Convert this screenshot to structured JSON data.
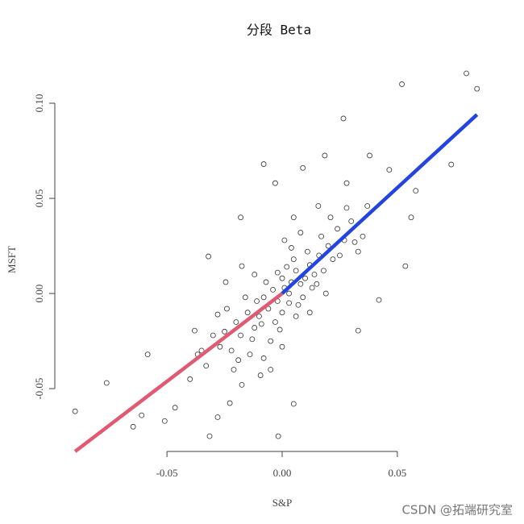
{
  "chart_data": {
    "type": "scatter",
    "title": "分段 Beta",
    "x_label": "S&P",
    "y_label": "MSFT",
    "watermark": "CSDN @拓端研究室",
    "xlim": [
      -0.098,
      0.091
    ],
    "ylim": [
      -0.083,
      0.1195
    ],
    "xticks": [
      -0.05,
      {
        "value": 0,
        "label": "0.00"
      },
      0.05
    ],
    "yticks": [
      -0.05,
      {
        "value": 0,
        "label": "0.00"
      },
      0.05,
      {
        "value": 0.1,
        "label": "0.10"
      }
    ],
    "series": [
      {
        "color": "#333333",
        "kind": "points",
        "x": [
          -0.0899,
          -0.0762,
          -0.0584,
          -0.0647,
          -0.061,
          -0.051,
          -0.0465,
          -0.0315,
          -0.0017,
          -0.028,
          0.005,
          -0.032,
          -0.018,
          -0.008,
          -0.003,
          0.009,
          0.0266,
          0.052,
          0.08,
          0.0846,
          0.0734,
          0.058,
          0.056,
          0.0535,
          0.0465,
          0.038,
          0.0185,
          0.033,
          0.042,
          0.0315,
          0.037,
          -0.04,
          -0.0367,
          -0.0227,
          -0.0175,
          -0.0094,
          -0.028,
          -0.0245,
          -0.038,
          -0.0175,
          0.028,
          0.0157,
          -0.002,
          0.001,
          0.004,
          -0.006,
          0.008,
          -0.01,
          0.012,
          -0.004,
          0.003,
          0.006,
          -0.008,
          0.01,
          -0.012,
          0.014,
          0.0,
          0.0,
          -0.015,
          0.016,
          -0.003,
          0.005,
          -0.018,
          0.018,
          -0.007,
          0.007,
          0.002,
          -0.001,
          0.011,
          -0.011,
          0.02,
          -0.02,
          0.009,
          -0.009,
          0.013,
          -0.013,
          0.004,
          -0.005,
          0.022,
          -0.022,
          0.017,
          -0.016,
          0.025,
          -0.025,
          0.003,
          -0.002,
          0.006,
          0.015,
          -0.014,
          0.024,
          -0.024,
          0.001,
          0.0,
          0.019,
          -0.019,
          0.027,
          -0.027,
          0.008,
          -0.008,
          0.03,
          -0.03,
          0.012,
          -0.012,
          0.021,
          -0.021,
          0.005,
          -0.005,
          0.033,
          -0.033,
          0.028,
          0.035,
          -0.035
        ],
        "values": [
          -0.0619,
          -0.047,
          -0.032,
          -0.07,
          -0.064,
          -0.067,
          -0.06,
          -0.075,
          -0.075,
          -0.065,
          -0.058,
          0.0195,
          0.04,
          0.068,
          0.058,
          0.066,
          0.092,
          0.11,
          0.1157,
          0.1076,
          0.0678,
          0.054,
          0.04,
          0.0144,
          0.065,
          0.0725,
          0.0725,
          -0.0195,
          -0.0034,
          0.027,
          0.046,
          -0.045,
          -0.032,
          -0.0576,
          -0.048,
          -0.043,
          -0.011,
          0.006,
          -0.0195,
          0.0144,
          0.058,
          0.046,
          -0.004,
          0.003,
          0.006,
          -0.008,
          0.005,
          -0.012,
          0.015,
          0.002,
          -0.005,
          0.012,
          -0.002,
          0.008,
          -0.018,
          0.01,
          0.008,
          -0.01,
          -0.01,
          0.02,
          -0.015,
          0.018,
          -0.022,
          0.012,
          0.006,
          -0.006,
          0.014,
          -0.019,
          0.022,
          -0.004,
          0.025,
          -0.015,
          -0.002,
          -0.016,
          0.003,
          -0.024,
          0.024,
          -0.025,
          0.018,
          -0.03,
          0.03,
          -0.002,
          0.02,
          -0.02,
          0.0,
          0.011,
          -0.012,
          0.005,
          -0.032,
          0.034,
          -0.008,
          0.028,
          -0.028,
          0.0,
          -0.035,
          0.028,
          -0.028,
          0.032,
          -0.034,
          0.038,
          -0.022,
          -0.01,
          0.01,
          0.04,
          -0.04,
          0.04,
          -0.04,
          0.022,
          -0.038,
          0.045,
          0.03,
          -0.03
        ]
      },
      {
        "color": "#e05a72",
        "kind": "line",
        "x": [
          -0.0899,
          0
        ],
        "values": [
          -0.083,
          0
        ]
      },
      {
        "color": "#2344e0",
        "kind": "line",
        "x": [
          0,
          0.0846
        ],
        "values": [
          0,
          0.094
        ]
      }
    ]
  }
}
